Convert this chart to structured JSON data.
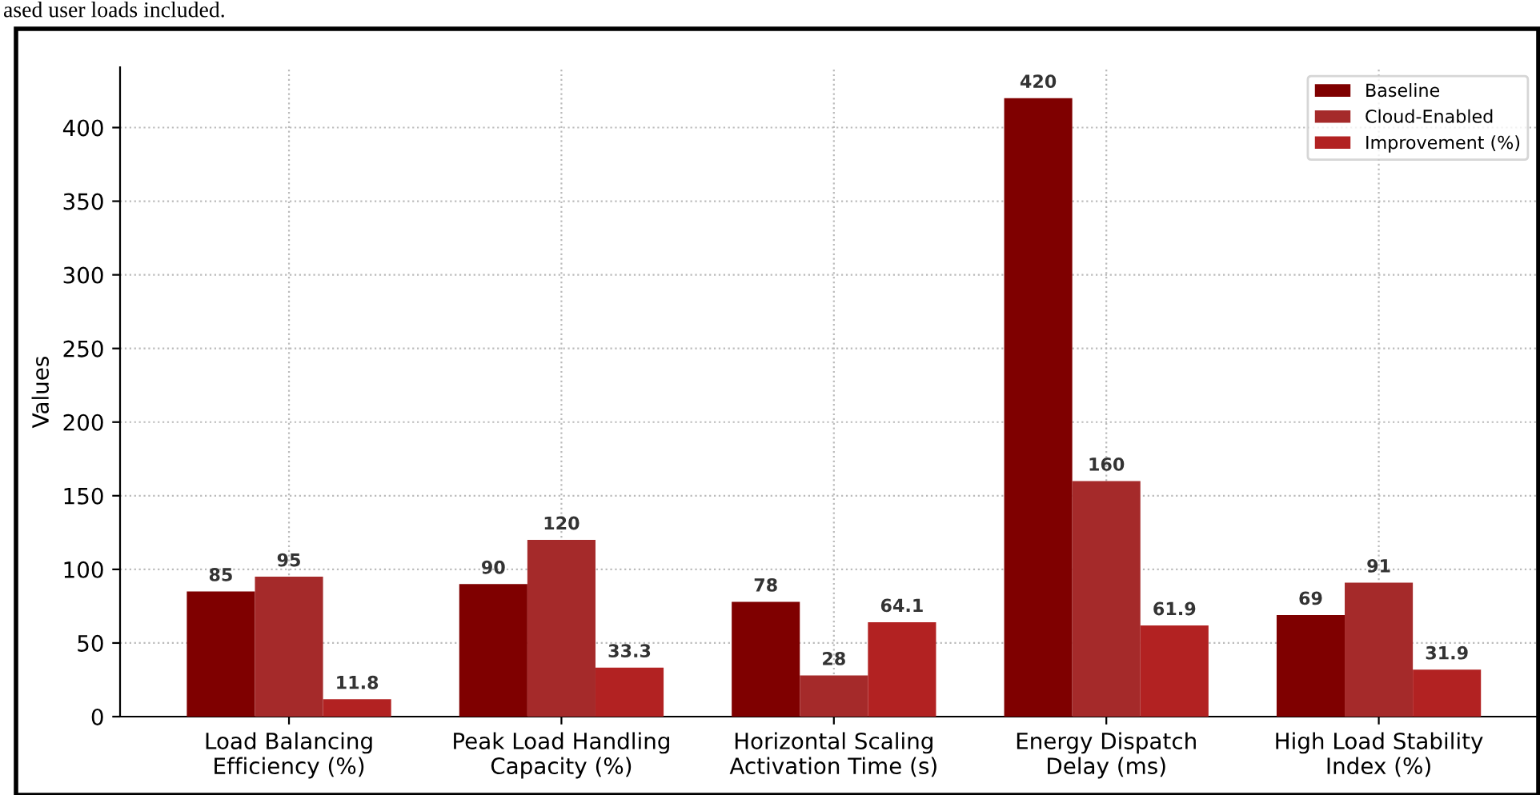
{
  "chart_data": {
    "type": "bar",
    "ylabel": "Values",
    "categories": [
      "Load Balancing\nEfficiency (%)",
      "Peak Load Handling\nCapacity (%)",
      "Horizontal Scaling\nActivation Time (s)",
      "Energy Dispatch\nDelay (ms)",
      "High Load Stability\nIndex (%)"
    ],
    "series": [
      {
        "name": "Baseline",
        "color": "#7f0000",
        "values": [
          85,
          90,
          78,
          420,
          69
        ]
      },
      {
        "name": "Cloud-Enabled",
        "color": "#a52a2a",
        "values": [
          95,
          120,
          28,
          160,
          91
        ]
      },
      {
        "name": "Improvement (%)",
        "color": "#b22222",
        "values": [
          11.8,
          33.3,
          64.1,
          61.9,
          31.9
        ]
      }
    ],
    "ylim": [
      0,
      441
    ],
    "yticks": [
      0,
      50,
      100,
      150,
      200,
      250,
      300,
      350,
      400
    ],
    "grid": true,
    "legend": "top right",
    "data_labels": true,
    "annotations": [
      "ased user loads included."
    ]
  }
}
